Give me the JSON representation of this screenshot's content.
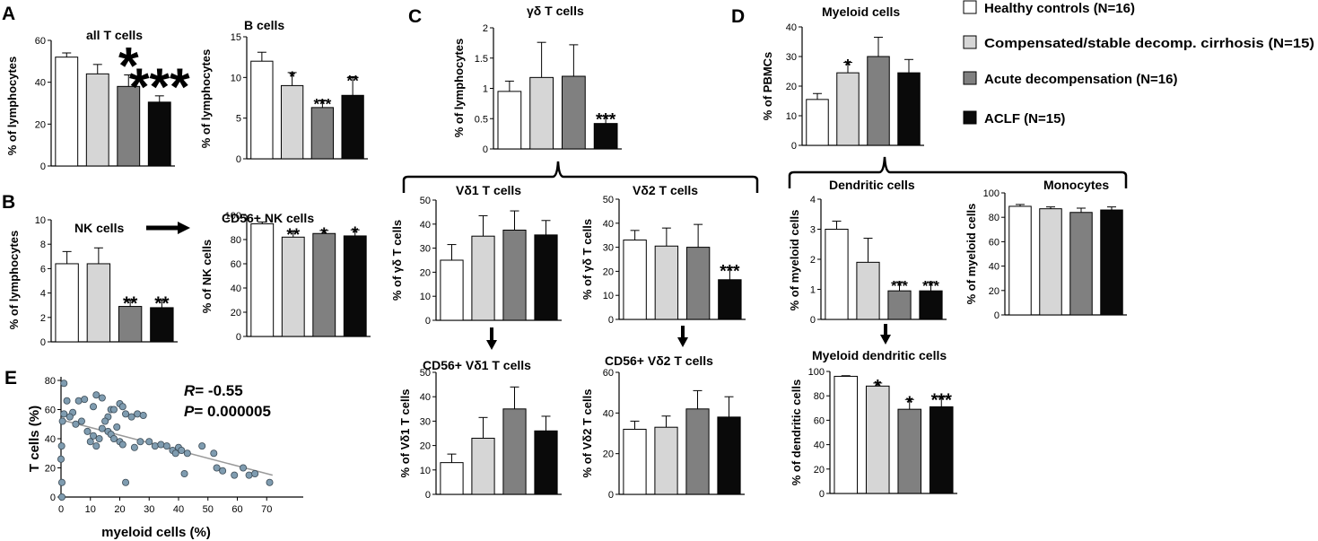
{
  "figure": {
    "panel_letters": [
      "A",
      "B",
      "C",
      "D",
      "E"
    ],
    "legend": [
      {
        "label": "Healthy controls (N=16)",
        "color": "#ffffff"
      },
      {
        "label": "Compensated/stable decomp. cirrhosis (N=15)",
        "color": "#d6d6d6"
      },
      {
        "label": "Acute decompensation (N=16)",
        "color": "#808080"
      },
      {
        "label": "ACLF (N=15)",
        "color": "#0a0a0a"
      }
    ]
  },
  "chart_data": [
    {
      "id": "allT",
      "type": "bar",
      "title": "all T cells",
      "ylabel": "% of lymphocytes",
      "ylim": [
        0,
        60
      ],
      "ticks": [
        0,
        20,
        40,
        60
      ],
      "values": [
        52,
        44,
        38,
        30.5
      ],
      "errors": [
        2,
        4.5,
        5.5,
        3
      ],
      "stars": [
        "",
        "",
        "*",
        "***"
      ]
    },
    {
      "id": "bcells",
      "type": "bar",
      "title": "B cells",
      "ylabel": "% of lymphocytes",
      "ylim": [
        0,
        15
      ],
      "ticks": [
        0,
        5,
        10,
        15
      ],
      "values": [
        12,
        9,
        6.3,
        7.8
      ],
      "errors": [
        1.1,
        1.6,
        0.9,
        2.3
      ],
      "stars": [
        "",
        "*",
        "***",
        "**"
      ]
    },
    {
      "id": "nk",
      "type": "bar",
      "title": "NK cells",
      "ylabel": "% of lymphocytes",
      "ylim": [
        0,
        10
      ],
      "ticks": [
        0,
        2,
        4,
        6,
        8,
        10
      ],
      "values": [
        6.4,
        6.4,
        2.9,
        2.8
      ],
      "errors": [
        1,
        1.3,
        0.5,
        0.6
      ],
      "stars": [
        "",
        "",
        "**",
        "**"
      ]
    },
    {
      "id": "cd56nk",
      "type": "bar",
      "title": "CD56+ NK cells",
      "ylabel": "% of NK cells",
      "ylim": [
        0,
        100
      ],
      "ticks": [
        0,
        20,
        40,
        60,
        80,
        100
      ],
      "values": [
        93,
        82,
        85,
        83
      ],
      "errors": [
        1.5,
        4.5,
        2.5,
        5
      ],
      "stars": [
        "",
        "**",
        "*",
        "*"
      ]
    },
    {
      "id": "gd",
      "type": "bar",
      "title": "γδ T cells",
      "ylabel": "% of lymphocytes",
      "ylim": [
        0,
        2
      ],
      "ticks": [
        0,
        0.5,
        1,
        1.5,
        2
      ],
      "values": [
        0.95,
        1.18,
        1.2,
        0.42
      ],
      "errors": [
        0.17,
        0.58,
        0.52,
        0.12
      ],
      "stars": [
        "",
        "",
        "",
        "***"
      ]
    },
    {
      "id": "vd1",
      "type": "bar",
      "title": "Vδ1 T cells",
      "ylabel": "% of γδ T cells",
      "ylim": [
        0,
        50
      ],
      "ticks": [
        0,
        10,
        20,
        30,
        40,
        50
      ],
      "values": [
        25,
        35,
        37.5,
        35.5
      ],
      "errors": [
        6.5,
        8.5,
        8,
        6
      ],
      "stars": [
        "",
        "",
        "",
        ""
      ]
    },
    {
      "id": "vd2",
      "type": "bar",
      "title": "Vδ2 T cells",
      "ylabel": "% of γδ T cells",
      "ylim": [
        0,
        50
      ],
      "ticks": [
        0,
        10,
        20,
        30,
        40,
        50
      ],
      "values": [
        33,
        30.5,
        30,
        16.5
      ],
      "errors": [
        4,
        7.5,
        9.5,
        5
      ],
      "stars": [
        "",
        "",
        "",
        "***"
      ]
    },
    {
      "id": "cd56vd1",
      "type": "bar",
      "title": "CD56+ Vδ1 T cells",
      "ylabel": "% of Vδ1 T cells",
      "ylim": [
        0,
        50
      ],
      "ticks": [
        0,
        10,
        20,
        30,
        40,
        50
      ],
      "values": [
        13,
        23,
        35,
        26
      ],
      "errors": [
        3.5,
        8.5,
        9,
        6
      ],
      "stars": [
        "",
        "",
        "",
        ""
      ]
    },
    {
      "id": "cd56vd2",
      "type": "bar",
      "title": "CD56+ Vδ2 T cells",
      "ylabel": "% of Vδ2 T cells",
      "ylim": [
        0,
        60
      ],
      "ticks": [
        0,
        20,
        40,
        60
      ],
      "values": [
        32,
        33,
        42,
        38
      ],
      "errors": [
        4,
        5.5,
        9,
        10
      ],
      "stars": [
        "",
        "",
        "",
        ""
      ]
    },
    {
      "id": "myeloid",
      "type": "bar",
      "title": "Myeloid cells",
      "ylabel": "% of PBMCs",
      "ylim": [
        0,
        40
      ],
      "ticks": [
        0,
        10,
        20,
        30,
        40
      ],
      "values": [
        15.5,
        24.5,
        30,
        24.5
      ],
      "errors": [
        2,
        3.5,
        6.5,
        4.5
      ],
      "stars": [
        "",
        "*",
        "",
        ""
      ]
    },
    {
      "id": "dc",
      "type": "bar",
      "title": "Dendritic cells",
      "ylabel": "% of myeloid cells",
      "ylim": [
        0,
        4
      ],
      "ticks": [
        0,
        1,
        2,
        3,
        4
      ],
      "values": [
        3,
        1.9,
        0.95,
        0.95
      ],
      "errors": [
        0.27,
        0.8,
        0.3,
        0.3
      ],
      "stars": [
        "",
        "",
        "***",
        "***"
      ]
    },
    {
      "id": "mono",
      "type": "bar",
      "title": "Monocytes",
      "ylabel": "% of myeloid cells",
      "ylim": [
        0,
        100
      ],
      "ticks": [
        0,
        20,
        40,
        60,
        80,
        100
      ],
      "values": [
        89,
        87,
        84,
        86
      ],
      "errors": [
        1.5,
        1.5,
        3.5,
        2.5
      ],
      "stars": [
        "",
        "",
        "",
        ""
      ]
    },
    {
      "id": "mdc",
      "type": "bar",
      "title": "Myeloid dendritic cells",
      "ylabel": "% of dendritic cells",
      "ylim": [
        0,
        100
      ],
      "ticks": [
        0,
        20,
        40,
        60,
        80,
        100
      ],
      "values": [
        96,
        88,
        69,
        71
      ],
      "errors": [
        0.5,
        2.5,
        8,
        8
      ],
      "stars": [
        "",
        "*",
        "*",
        "***"
      ]
    },
    {
      "id": "corr",
      "type": "scatter",
      "xlabel": "myeloid cells (%)",
      "ylabel": "T cells (%)",
      "xlim": [
        0,
        80
      ],
      "ylim": [
        0,
        80
      ],
      "xticks": [
        0,
        10,
        20,
        30,
        40,
        50,
        60,
        70
      ],
      "yticks": [
        0,
        20,
        40,
        60,
        80
      ],
      "r_label": "R",
      "r_value": "= -0.55",
      "p_label": "P",
      "p_value": "= 0.000005",
      "fit": {
        "x0": 0,
        "y0": 53,
        "x1": 72,
        "y1": 15
      },
      "points": [
        [
          1,
          78
        ],
        [
          2,
          66
        ],
        [
          4,
          58
        ],
        [
          6,
          66
        ],
        [
          8,
          67
        ],
        [
          11,
          62
        ],
        [
          12,
          70
        ],
        [
          14,
          68
        ],
        [
          16,
          55
        ],
        [
          17,
          60
        ],
        [
          18,
          60
        ],
        [
          20,
          64
        ],
        [
          21,
          62
        ],
        [
          22,
          57
        ],
        [
          24,
          55
        ],
        [
          26,
          57
        ],
        [
          28,
          56
        ],
        [
          0.5,
          52
        ],
        [
          1,
          57
        ],
        [
          3,
          55
        ],
        [
          5,
          50
        ],
        [
          7,
          52
        ],
        [
          9,
          45
        ],
        [
          10,
          38
        ],
        [
          11,
          42
        ],
        [
          12,
          35
        ],
        [
          13,
          40
        ],
        [
          14,
          47
        ],
        [
          15,
          52
        ],
        [
          16,
          45
        ],
        [
          17,
          43
        ],
        [
          18,
          40
        ],
        [
          19,
          48
        ],
        [
          20,
          38
        ],
        [
          21,
          36
        ],
        [
          22,
          10
        ],
        [
          25,
          34
        ],
        [
          27,
          38
        ],
        [
          30,
          38
        ],
        [
          32,
          35
        ],
        [
          34,
          36
        ],
        [
          36,
          35
        ],
        [
          38,
          32
        ],
        [
          39,
          30
        ],
        [
          40,
          34
        ],
        [
          41,
          32
        ],
        [
          42,
          16
        ],
        [
          43,
          30
        ],
        [
          48,
          35
        ],
        [
          52,
          30
        ],
        [
          53,
          20
        ],
        [
          55,
          18
        ],
        [
          59,
          15
        ],
        [
          62,
          20
        ],
        [
          64,
          15
        ],
        [
          66,
          16
        ],
        [
          71,
          10
        ],
        [
          0,
          26
        ],
        [
          0.3,
          10
        ],
        [
          0.3,
          0
        ],
        [
          0.2,
          35
        ]
      ]
    }
  ]
}
